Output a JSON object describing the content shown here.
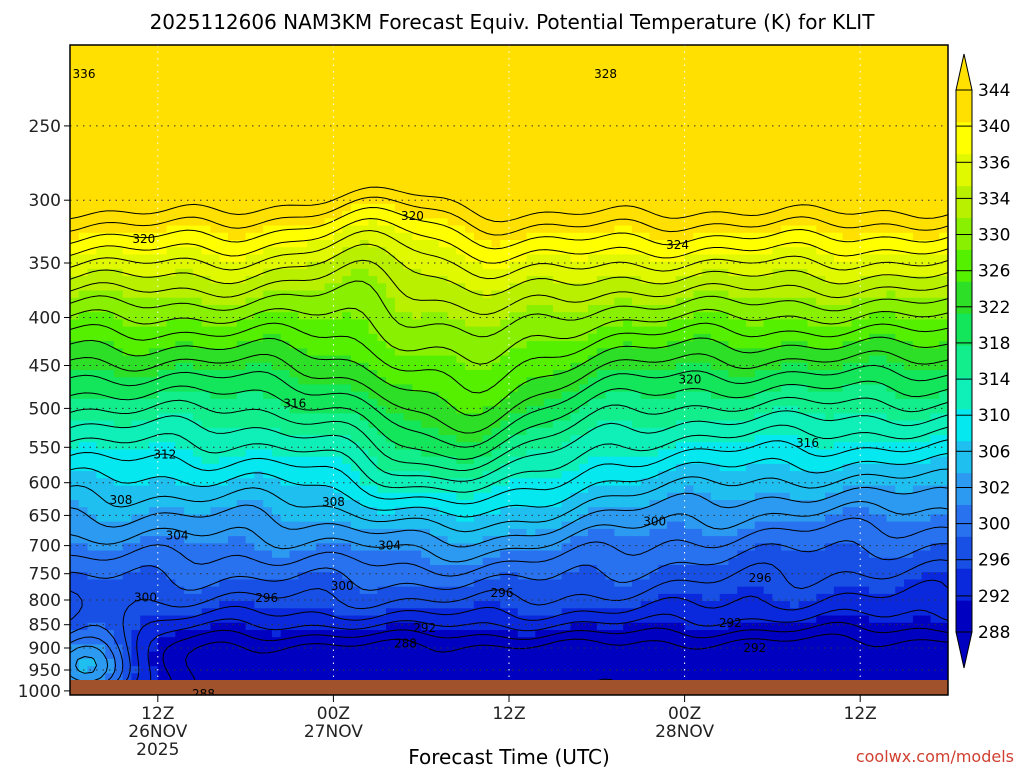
{
  "title": "2025112606 NAM3KM Forecast Equiv. Potential Temperature (K) for KLIT",
  "xlabel": "Forecast Time (UTC)",
  "credit": "coolwx.com/models",
  "colors": {
    "ground": "#a0522d",
    "colorscale": [
      "#0000c0",
      "#0a28dc",
      "#1850e6",
      "#2872f0",
      "#2c9af0",
      "#1fbff0",
      "#06e8f0",
      "#0fefb8",
      "#12ee8c",
      "#14e65c",
      "#2ddf26",
      "#55f000",
      "#88f000",
      "#b8f000",
      "#e0f800",
      "#ffff00",
      "#ffe000"
    ]
  },
  "chart_data": {
    "type": "heatmap",
    "variable": "Equivalent Potential Temperature (K)",
    "y_axis": {
      "scale": "log-pressure",
      "range": [
        1010,
        205
      ],
      "tick_labels": [
        "250",
        "300",
        "350",
        "400",
        "450",
        "500",
        "550",
        "600",
        "650",
        "700",
        "750",
        "800",
        "850",
        "900",
        "950",
        "1000"
      ],
      "ticks": [
        250,
        300,
        350,
        400,
        450,
        500,
        550,
        600,
        650,
        700,
        750,
        800,
        850,
        900,
        950,
        1000
      ]
    },
    "x_axis": {
      "range_hours": [
        -5,
        45
      ],
      "ticks": [
        {
          "hour": 0,
          "label": [
            "12Z",
            "26NOV",
            "2025"
          ]
        },
        {
          "hour": 10,
          "label": [
            "00Z",
            "27NOV"
          ]
        },
        {
          "hour": 20,
          "label": [
            "12Z"
          ]
        },
        {
          "hour": 30,
          "label": [
            "00Z",
            "28NOV"
          ]
        },
        {
          "hour": 40,
          "label": [
            "12Z"
          ]
        }
      ]
    },
    "colorbar": {
      "levels": [
        288,
        290,
        292,
        294,
        296,
        298,
        300,
        302,
        304,
        306,
        308,
        310,
        312,
        314,
        316,
        318,
        320,
        322,
        324,
        326,
        328,
        330,
        332,
        334,
        336,
        338,
        340,
        342,
        344
      ],
      "tick_labels": [
        "288",
        "292",
        "296",
        "300",
        "302",
        "306",
        "310",
        "314",
        "318",
        "322",
        "326",
        "330",
        "334",
        "336",
        "340",
        "344"
      ],
      "extend": "both"
    },
    "contour_interval": 2,
    "contour_labels": [
      {
        "text": "336",
        "hour": -4.2,
        "p": 220
      },
      {
        "text": "328",
        "hour": 25.5,
        "p": 220
      },
      {
        "text": "320",
        "hour": -0.8,
        "p": 330
      },
      {
        "text": "320",
        "hour": 14.5,
        "p": 312
      },
      {
        "text": "324",
        "hour": 29.6,
        "p": 335
      },
      {
        "text": "320",
        "hour": 30.3,
        "p": 466
      },
      {
        "text": "316",
        "hour": 7.8,
        "p": 494
      },
      {
        "text": "316",
        "hour": 37.0,
        "p": 544
      },
      {
        "text": "312",
        "hour": 0.4,
        "p": 560
      },
      {
        "text": "308",
        "hour": -2.1,
        "p": 626
      },
      {
        "text": "308",
        "hour": 10.0,
        "p": 629
      },
      {
        "text": "304",
        "hour": 1.1,
        "p": 683
      },
      {
        "text": "304",
        "hour": 13.2,
        "p": 700
      },
      {
        "text": "300",
        "hour": 28.3,
        "p": 660
      },
      {
        "text": "300",
        "hour": -0.7,
        "p": 795
      },
      {
        "text": "300",
        "hour": 10.5,
        "p": 773
      },
      {
        "text": "296",
        "hour": 6.2,
        "p": 796
      },
      {
        "text": "296",
        "hour": 19.6,
        "p": 786
      },
      {
        "text": "296",
        "hour": 34.3,
        "p": 758
      },
      {
        "text": "292",
        "hour": 15.2,
        "p": 857
      },
      {
        "text": "292",
        "hour": 32.6,
        "p": 846
      },
      {
        "text": "292",
        "hour": 34.0,
        "p": 900
      },
      {
        "text": "288",
        "hour": 14.1,
        "p": 890
      },
      {
        "text": "288",
        "hour": 2.6,
        "p": 1008
      }
    ]
  }
}
